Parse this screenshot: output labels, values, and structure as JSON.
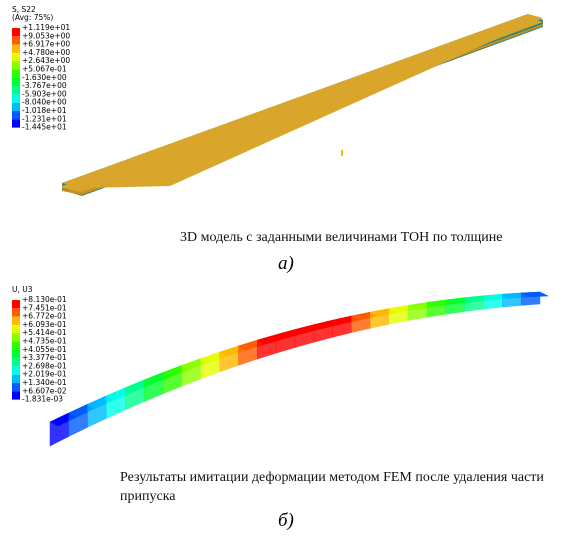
{
  "panels": [
    {
      "legend": {
        "title": "S, S22",
        "subtitle": "(Avg: 75%)",
        "labels": [
          "+1.119e+01",
          "+9.053e+00",
          "+6.917e+00",
          "+4.780e+00",
          "+2.643e+00",
          "+5.067e-01",
          "-1.630e+00",
          "-3.767e+00",
          "-5.903e+00",
          "-8.040e+00",
          "-1.018e+01",
          "-1.231e+01",
          "-1.445e+01"
        ]
      },
      "caption": "3D модель с заданными величинами ТОН по толщине",
      "label": "а)"
    },
    {
      "legend": {
        "title": "U, U3",
        "labels": [
          "+8.130e-01",
          "+7.451e-01",
          "+6.772e-01",
          "+6.093e-01",
          "+5.414e-01",
          "+4.735e-01",
          "+4.055e-01",
          "+3.377e-01",
          "+2.698e-01",
          "+2.019e-01",
          "+1.340e-01",
          "+6.607e-02",
          "-1.831e-03"
        ]
      },
      "caption": "Результаты имитации деформации методом  FEM после удаления части припуска",
      "label": "б)"
    }
  ]
}
